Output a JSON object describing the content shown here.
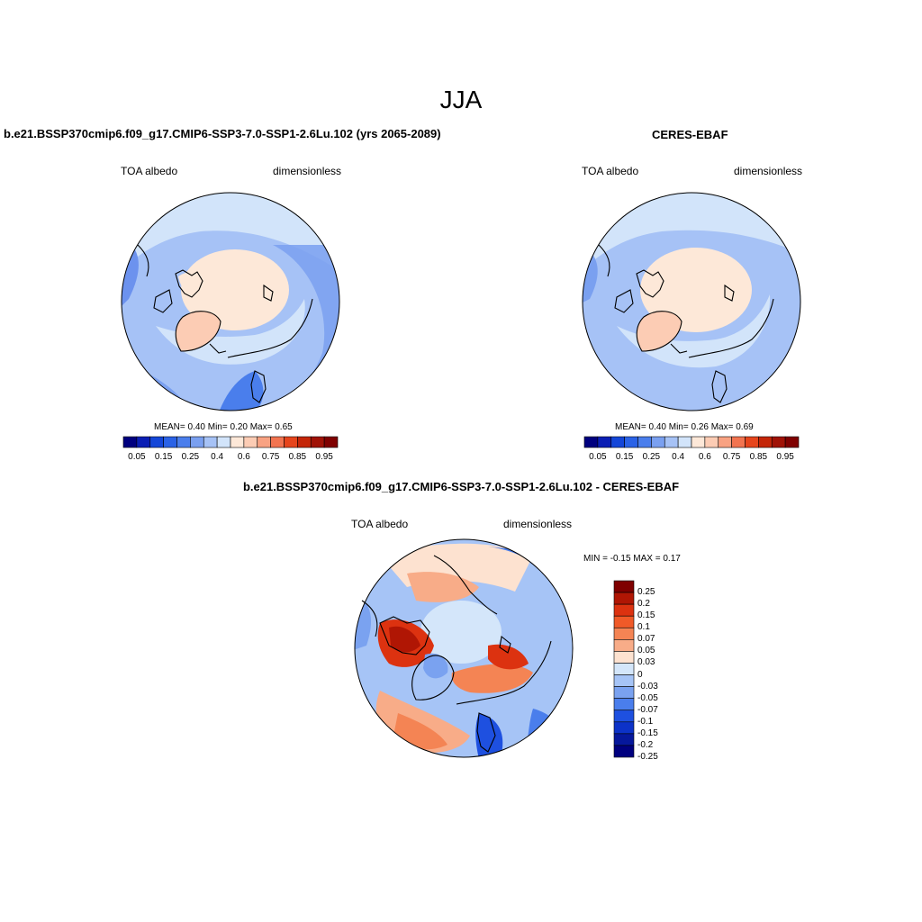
{
  "figure": {
    "title": "JJA",
    "variable": "TOA albedo",
    "units": "dimensionless"
  },
  "panels": [
    {
      "id": "model",
      "title": "b.e21.BSSP370cmip6.f09_g17.CMIP6-SSP3-7.0-SSP1-2.6Lu.102 (yrs 2065-2089)",
      "stats_label": "MEAN=   0.40  Min=   0.20  Max=   0.65",
      "stats": {
        "mean": 0.4,
        "min": 0.2,
        "max": 0.65
      }
    },
    {
      "id": "obs",
      "title": "CERES-EBAF",
      "stats_label": "MEAN=   0.40  Min=   0.26  Max=   0.69",
      "stats": {
        "mean": 0.4,
        "min": 0.26,
        "max": 0.69
      }
    },
    {
      "id": "diff",
      "title": "b.e21.BSSP370cmip6.f09_g17.CMIP6-SSP3-7.0-SSP1-2.6Lu.102 - CERES-EBAF",
      "stats_label": "MIN =  -0.15 MAX =   0.17",
      "stats": {
        "min": -0.15,
        "max": 0.17
      }
    }
  ],
  "colorbar_abs": {
    "colors": [
      "#00007f",
      "#0a1eb4",
      "#1446d8",
      "#2a62e6",
      "#4a7eec",
      "#7aa0f0",
      "#a6c2f6",
      "#d2e4fa",
      "#fde8d8",
      "#fcccb4",
      "#f8a282",
      "#f27450",
      "#e6451c",
      "#c42608",
      "#a01206",
      "#7f0000"
    ],
    "tick_labels": [
      "0.05",
      "0.15",
      "0.25",
      "0.4",
      "0.6",
      "0.75",
      "0.85",
      "0.95"
    ]
  },
  "colorbar_diff": {
    "colors": [
      "#7f0000",
      "#b01604",
      "#dc3210",
      "#f05a28",
      "#f48454",
      "#f8ac88",
      "#fde2d0",
      "#d4e6fa",
      "#a6c4f6",
      "#7aa2f0",
      "#4a7eec",
      "#1e50e0",
      "#0c32c8",
      "#06189c",
      "#00007f"
    ],
    "tick_labels": [
      "0.25",
      "0.2",
      "0.15",
      "0.1",
      "0.07",
      "0.05",
      "0.03",
      "0",
      "-0.03",
      "-0.05",
      "-0.07",
      "-0.1",
      "-0.15",
      "-0.2",
      "-0.25"
    ]
  }
}
